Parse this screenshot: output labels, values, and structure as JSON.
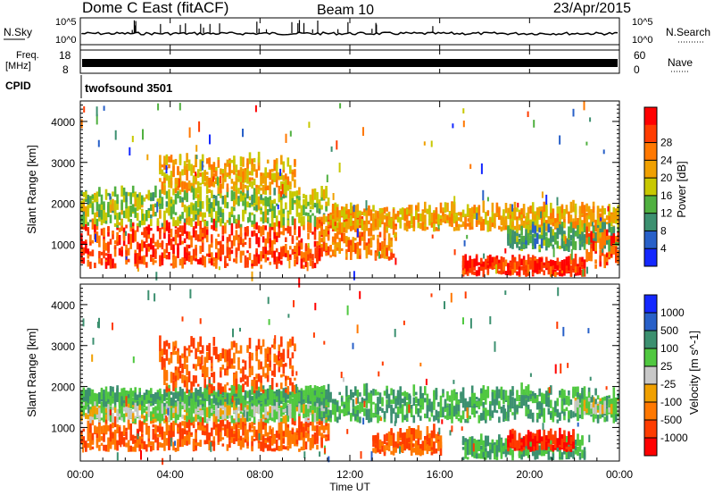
{
  "header": {
    "title": "Dome C East (fitACF)",
    "beam": "Beam 10",
    "date": "23/Apr/2015"
  },
  "noise_panel": {
    "left_label": "N.Sky",
    "right_label": "N.Search",
    "ticks": [
      "10^5",
      "10^0"
    ]
  },
  "freq_panel": {
    "left_label_line1": "Freq.",
    "left_label_line2": "[MHz]",
    "left_ticks": [
      "18",
      "8"
    ],
    "right_label": "Nave",
    "right_ticks": [
      "60",
      "0"
    ]
  },
  "cpid_panel": {
    "label": "CPID",
    "program": "twofsound 3501"
  },
  "time_axis": {
    "label": "Time UT",
    "ticks": [
      "00:00",
      "04:00",
      "08:00",
      "12:00",
      "16:00",
      "20:00",
      "00:00"
    ]
  },
  "chart_data": [
    {
      "type": "heatmap",
      "title": "",
      "xlabel": "Time UT",
      "ylabel": "Slant Range [km]",
      "xlim_hours": [
        0,
        24
      ],
      "ylim_km": [
        180,
        4500
      ],
      "y_ticks": [
        "1000",
        "2000",
        "3000",
        "4000"
      ],
      "colorbar": {
        "label": "Power [dB]",
        "ticks": [
          "4",
          "8",
          "12",
          "16",
          "20",
          "24",
          "28"
        ],
        "colors": [
          "#1428ff",
          "#2860c8",
          "#3c9070",
          "#50b040",
          "#c8c800",
          "#f0a000",
          "#ff7800",
          "#ff3c00",
          "#ff0000"
        ]
      },
      "echo_regions": [
        {
          "t0": 0.0,
          "t1": 11.0,
          "r0": 400,
          "r1": 1400,
          "power_db": 28
        },
        {
          "t0": 0.0,
          "t1": 11.0,
          "r0": 1400,
          "r1": 2200,
          "power_db": 14
        },
        {
          "t0": 3.5,
          "t1": 9.5,
          "r0": 2200,
          "r1": 3000,
          "power_db": 20
        },
        {
          "t0": 10.5,
          "t1": 14.0,
          "r0": 600,
          "r1": 1500,
          "power_db": 24
        },
        {
          "t0": 11.0,
          "t1": 24.0,
          "r0": 1300,
          "r1": 1800,
          "power_db": 20
        },
        {
          "t0": 17.0,
          "t1": 22.5,
          "r0": 200,
          "r1": 500,
          "power_db": 30
        },
        {
          "t0": 19.0,
          "t1": 24.0,
          "r0": 800,
          "r1": 1300,
          "power_db": 10
        },
        {
          "t0": 22.5,
          "t1": 24.0,
          "r0": 400,
          "r1": 1200,
          "power_db": 26
        }
      ]
    },
    {
      "type": "heatmap",
      "title": "",
      "xlabel": "Time UT",
      "ylabel": "Slant Range [km]",
      "xlim_hours": [
        0,
        24
      ],
      "ylim_km": [
        180,
        4500
      ],
      "y_ticks": [
        "1000",
        "2000",
        "3000",
        "4000"
      ],
      "colorbar": {
        "label": "Velocity [m s^-1]",
        "ticks": [
          "1000",
          "500",
          "100",
          "25",
          "-25",
          "-100",
          "-500",
          "-1000"
        ],
        "colors": [
          "#1428ff",
          "#2860c8",
          "#3c9070",
          "#50c840",
          "#c8c8c8",
          "#f0a000",
          "#ff7800",
          "#ff3c00",
          "#ff0000"
        ]
      },
      "echo_regions": [
        {
          "t0": 0.0,
          "t1": 11.0,
          "r0": 400,
          "r1": 1100,
          "velocity": -100
        },
        {
          "t0": 0.0,
          "t1": 11.0,
          "r0": 1100,
          "r1": 1500,
          "velocity": 25
        },
        {
          "t0": 0.0,
          "t1": 11.0,
          "r0": 1500,
          "r1": 1800,
          "velocity": 100
        },
        {
          "t0": 3.5,
          "t1": 9.5,
          "r0": 1800,
          "r1": 3000,
          "velocity": -100
        },
        {
          "t0": 10.5,
          "t1": 24.0,
          "r0": 1100,
          "r1": 1800,
          "velocity": 100
        },
        {
          "t0": 13.0,
          "t1": 16.0,
          "r0": 300,
          "r1": 800,
          "velocity": -100
        },
        {
          "t0": 17.0,
          "t1": 22.5,
          "r0": 200,
          "r1": 600,
          "velocity": 100
        },
        {
          "t0": 19.0,
          "t1": 22.0,
          "r0": 400,
          "r1": 700,
          "velocity": -500
        },
        {
          "t0": 22.0,
          "t1": 24.0,
          "r0": 1300,
          "r1": 1500,
          "velocity": 25
        }
      ]
    }
  ]
}
